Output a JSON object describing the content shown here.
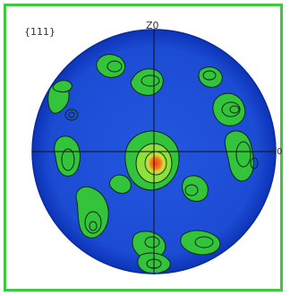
{
  "figure": {
    "plane": "{111}",
    "axis_top": "Z0",
    "axis_right": "Y0"
  },
  "colors": {
    "border": "#3dc93d",
    "background_level": "#1e50d8",
    "outer_ring": "#0a2fb0",
    "low_level": "#35c83d",
    "mid_level": "#8ee03a",
    "peak_level": "#e83a1c",
    "contour": "#0b2a12",
    "axes": "#111111"
  },
  "legend": []
}
